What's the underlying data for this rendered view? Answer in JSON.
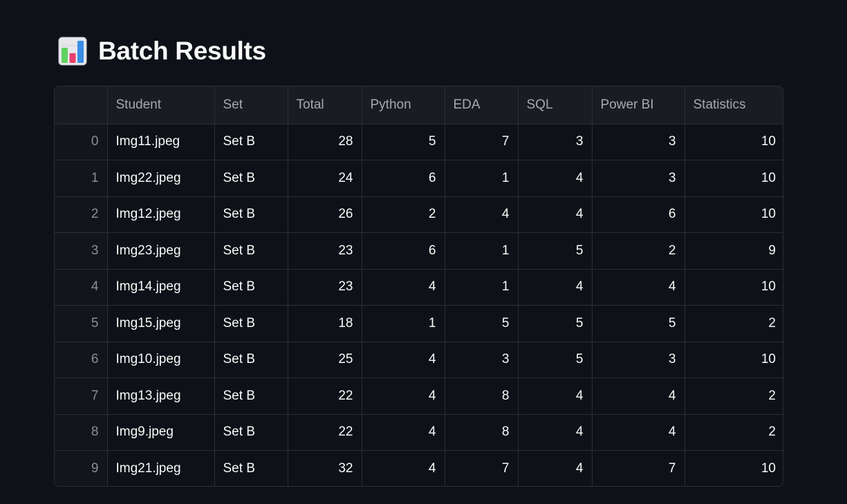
{
  "header": {
    "icon": "bar-chart-icon",
    "title": "Batch Results"
  },
  "table": {
    "columns": [
      "",
      "Student",
      "Set",
      "Total",
      "Python",
      "EDA",
      "SQL",
      "Power BI",
      "Statistics"
    ],
    "rows": [
      {
        "index": "0",
        "student": "Img11.jpeg",
        "set": "Set B",
        "total": "28",
        "python": "5",
        "eda": "7",
        "sql": "3",
        "powerbi": "3",
        "statistics": "10"
      },
      {
        "index": "1",
        "student": "Img22.jpeg",
        "set": "Set B",
        "total": "24",
        "python": "6",
        "eda": "1",
        "sql": "4",
        "powerbi": "3",
        "statistics": "10"
      },
      {
        "index": "2",
        "student": "Img12.jpeg",
        "set": "Set B",
        "total": "26",
        "python": "2",
        "eda": "4",
        "sql": "4",
        "powerbi": "6",
        "statistics": "10"
      },
      {
        "index": "3",
        "student": "Img23.jpeg",
        "set": "Set B",
        "total": "23",
        "python": "6",
        "eda": "1",
        "sql": "5",
        "powerbi": "2",
        "statistics": "9"
      },
      {
        "index": "4",
        "student": "Img14.jpeg",
        "set": "Set B",
        "total": "23",
        "python": "4",
        "eda": "1",
        "sql": "4",
        "powerbi": "4",
        "statistics": "10"
      },
      {
        "index": "5",
        "student": "Img15.jpeg",
        "set": "Set B",
        "total": "18",
        "python": "1",
        "eda": "5",
        "sql": "5",
        "powerbi": "5",
        "statistics": "2"
      },
      {
        "index": "6",
        "student": "Img10.jpeg",
        "set": "Set B",
        "total": "25",
        "python": "4",
        "eda": "3",
        "sql": "5",
        "powerbi": "3",
        "statistics": "10"
      },
      {
        "index": "7",
        "student": "Img13.jpeg",
        "set": "Set B",
        "total": "22",
        "python": "4",
        "eda": "8",
        "sql": "4",
        "powerbi": "4",
        "statistics": "2"
      },
      {
        "index": "8",
        "student": "Img9.jpeg",
        "set": "Set B",
        "total": "22",
        "python": "4",
        "eda": "8",
        "sql": "4",
        "powerbi": "4",
        "statistics": "2"
      },
      {
        "index": "9",
        "student": "Img21.jpeg",
        "set": "Set B",
        "total": "32",
        "python": "4",
        "eda": "7",
        "sql": "4",
        "powerbi": "7",
        "statistics": "10"
      }
    ]
  },
  "colors": {
    "background": "#0e1117",
    "header_row": "#1a1c24",
    "border": "#2b2e36",
    "text": "#fafafa",
    "muted_text": "#a7a9b1"
  }
}
